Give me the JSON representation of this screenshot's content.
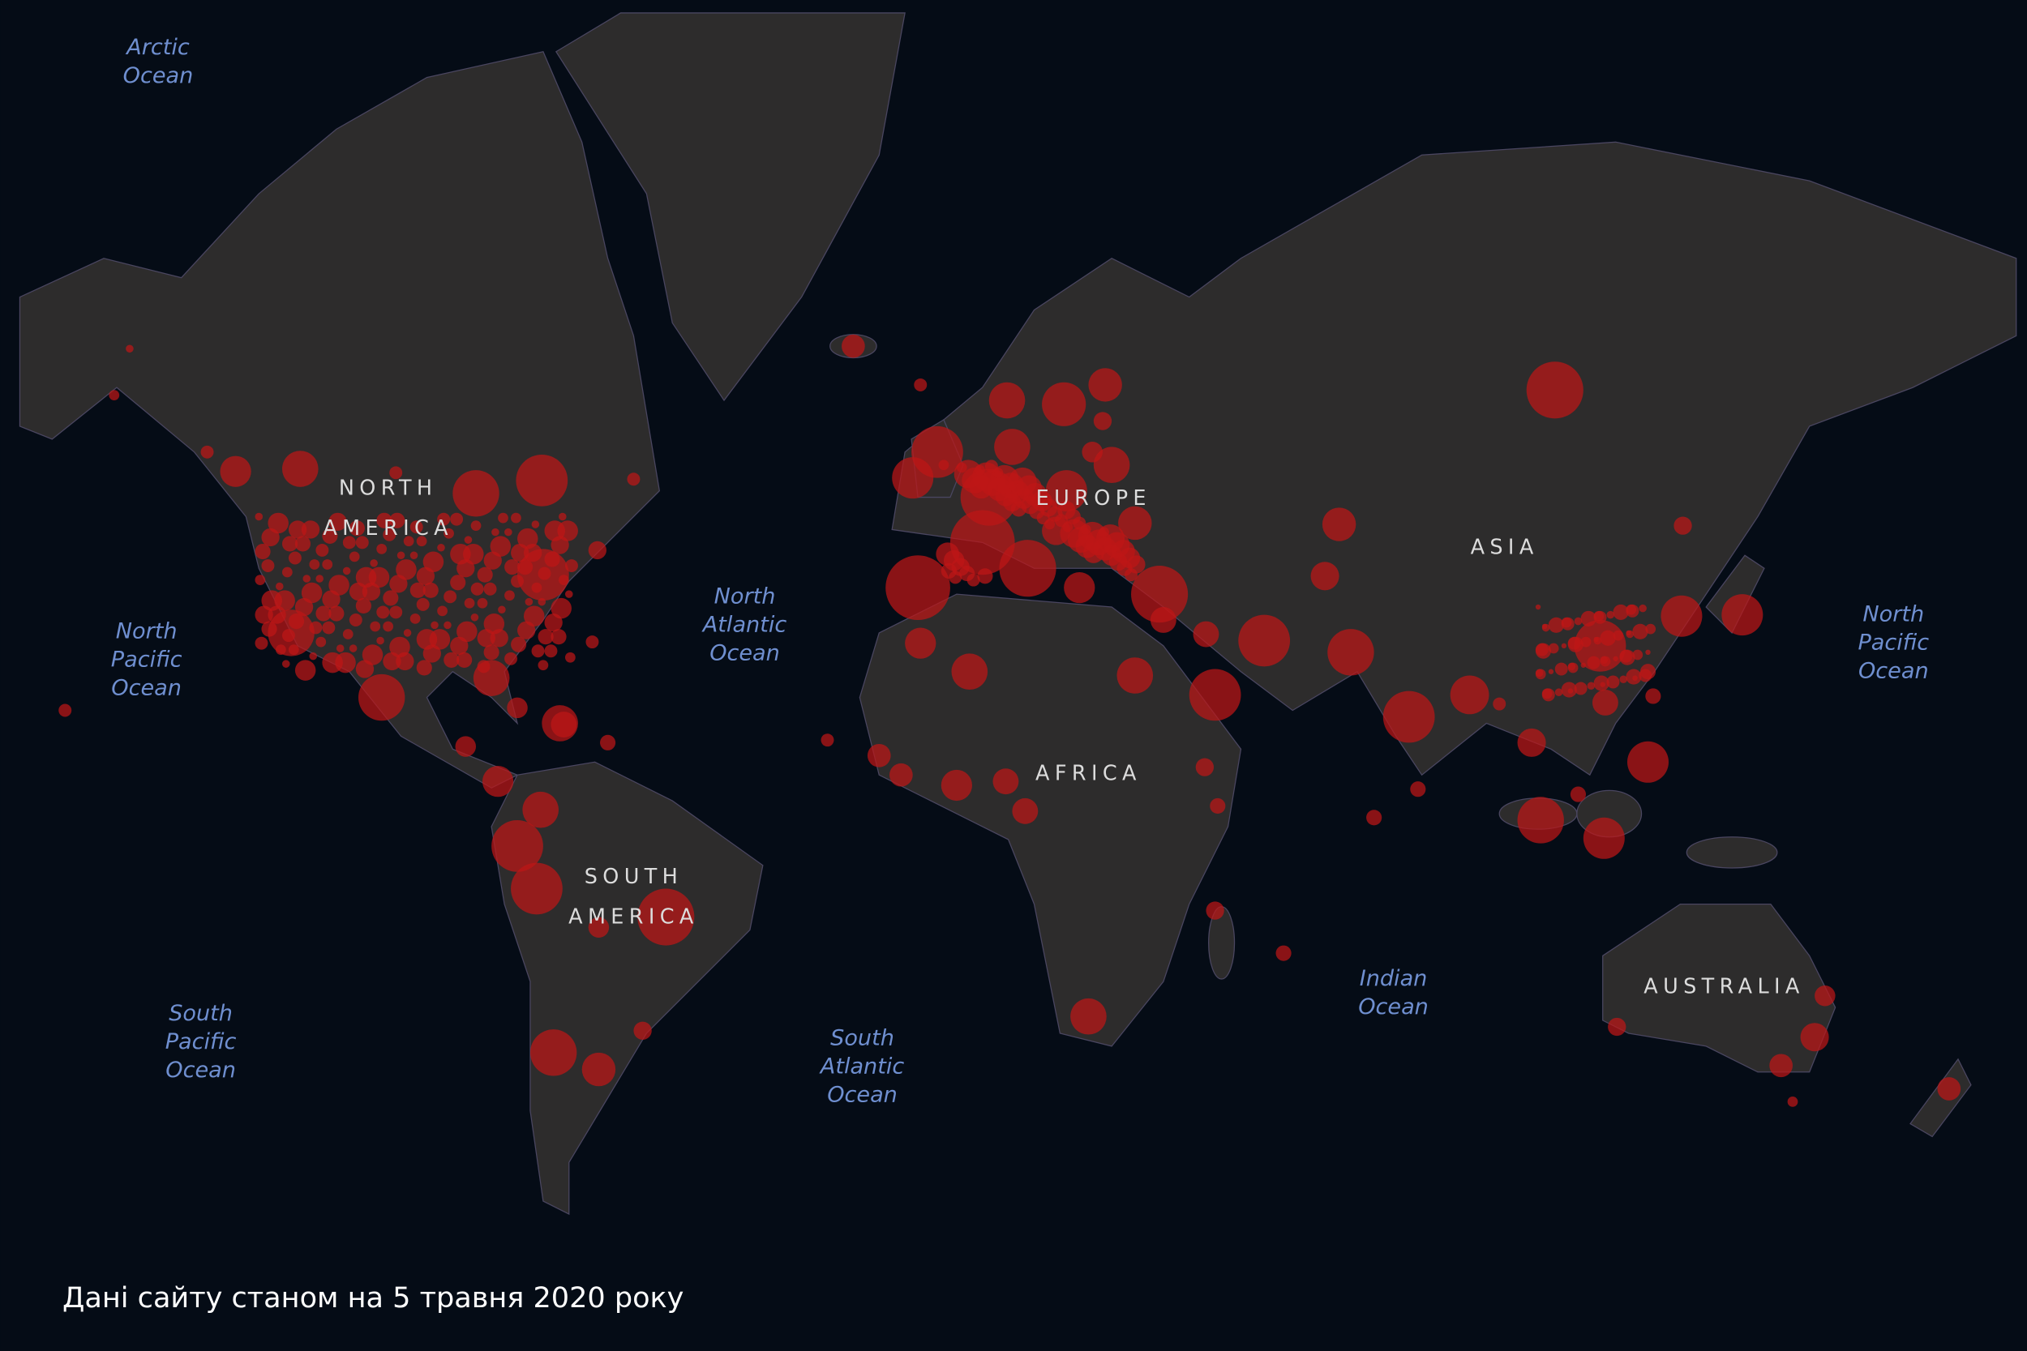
{
  "map": {
    "oceans": [
      {
        "lines": [
          "Arctic",
          "Ocean"
        ]
      },
      {
        "lines": [
          "North",
          "Pacific",
          "Ocean"
        ]
      },
      {
        "lines": [
          "North",
          "Atlantic",
          "Ocean"
        ]
      },
      {
        "lines": [
          "North",
          "Pacific",
          "Ocean"
        ]
      },
      {
        "lines": [
          "South",
          "Pacific",
          "Ocean"
        ]
      },
      {
        "lines": [
          "South",
          "Atlantic",
          "Ocean"
        ]
      },
      {
        "lines": [
          "Indian",
          "Ocean"
        ]
      }
    ],
    "continents": [
      {
        "lines": [
          "NORTH",
          "AMERICA"
        ]
      },
      {
        "lines": [
          "SOUTH",
          "AMERICA"
        ]
      },
      {
        "lines": [
          "EUROPE"
        ]
      },
      {
        "lines": [
          "AFRICA"
        ]
      },
      {
        "lines": [
          "ASIA"
        ]
      },
      {
        "lines": [
          "AUSTRALIA"
        ]
      }
    ]
  },
  "caption": "Дані сайту станом на 5 травня 2020 року"
}
